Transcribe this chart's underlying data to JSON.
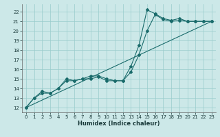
{
  "title": "",
  "xlabel": "Humidex (Indice chaleur)",
  "xlim": [
    -0.5,
    23.5
  ],
  "ylim": [
    11.5,
    22.8
  ],
  "xticks": [
    0,
    1,
    2,
    3,
    4,
    5,
    6,
    7,
    8,
    9,
    10,
    11,
    12,
    13,
    14,
    15,
    16,
    17,
    18,
    19,
    20,
    21,
    22,
    23
  ],
  "yticks": [
    12,
    13,
    14,
    15,
    16,
    17,
    18,
    19,
    20,
    21,
    22
  ],
  "bg_color": "#cce8e8",
  "grid_color": "#99cccc",
  "line_color": "#1a6b6b",
  "line1_x": [
    0,
    1,
    2,
    3,
    4,
    5,
    6,
    7,
    8,
    9,
    10,
    11,
    12,
    13,
    14,
    15,
    16,
    17,
    18,
    19,
    20,
    21,
    22,
    23
  ],
  "line1_y": [
    12.0,
    13.0,
    13.7,
    13.5,
    14.0,
    15.0,
    14.8,
    15.0,
    15.3,
    15.3,
    15.0,
    14.8,
    14.8,
    16.3,
    18.5,
    22.2,
    21.8,
    21.3,
    21.1,
    21.3,
    21.0,
    21.0,
    21.0,
    21.0
  ],
  "line2_x": [
    0,
    1,
    2,
    3,
    4,
    5,
    6,
    7,
    8,
    9,
    10,
    11,
    12,
    13,
    14,
    15,
    16,
    17,
    18,
    19,
    20,
    21,
    22,
    23
  ],
  "line2_y": [
    12.0,
    13.0,
    13.5,
    13.5,
    14.0,
    14.8,
    14.8,
    15.0,
    15.0,
    15.2,
    14.8,
    14.8,
    14.8,
    15.7,
    17.5,
    20.0,
    21.7,
    21.2,
    21.0,
    21.1,
    21.0,
    21.0,
    21.0,
    21.0
  ],
  "line3_x": [
    0,
    23
  ],
  "line3_y": [
    12.0,
    21.0
  ],
  "markersize": 2.0,
  "linewidth": 0.8,
  "tick_fontsize": 5,
  "xlabel_fontsize": 6
}
